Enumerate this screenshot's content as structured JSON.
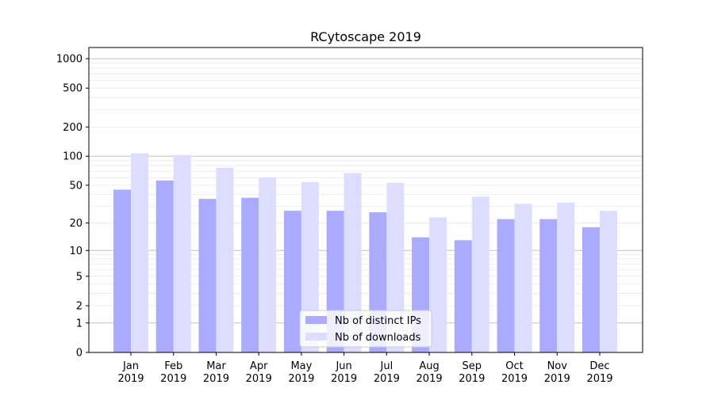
{
  "chart_data": {
    "type": "bar",
    "title": "RCytoscape 2019",
    "xlabel": "",
    "ylabel": "",
    "yscale": "symlog",
    "ylim": [
      0,
      1300
    ],
    "yticks": [
      0,
      1,
      2,
      5,
      10,
      20,
      50,
      100,
      200,
      500,
      1000
    ],
    "grid": true,
    "legend_position": "bottom-center",
    "categories": [
      {
        "month": "Jan",
        "year": "2019"
      },
      {
        "month": "Feb",
        "year": "2019"
      },
      {
        "month": "Mar",
        "year": "2019"
      },
      {
        "month": "Apr",
        "year": "2019"
      },
      {
        "month": "May",
        "year": "2019"
      },
      {
        "month": "Jun",
        "year": "2019"
      },
      {
        "month": "Jul",
        "year": "2019"
      },
      {
        "month": "Aug",
        "year": "2019"
      },
      {
        "month": "Sep",
        "year": "2019"
      },
      {
        "month": "Oct",
        "year": "2019"
      },
      {
        "month": "Nov",
        "year": "2019"
      },
      {
        "month": "Dec",
        "year": "2019"
      }
    ],
    "series": [
      {
        "name": "Nb of distinct IPs",
        "color": "#aaaaff",
        "values": [
          45,
          56,
          36,
          37,
          27,
          27,
          26,
          14,
          13,
          22,
          22,
          18
        ]
      },
      {
        "name": "Nb of downloads",
        "color": "#ddddff",
        "values": [
          107,
          103,
          76,
          60,
          54,
          67,
          53,
          23,
          38,
          32,
          33,
          27
        ]
      }
    ]
  }
}
